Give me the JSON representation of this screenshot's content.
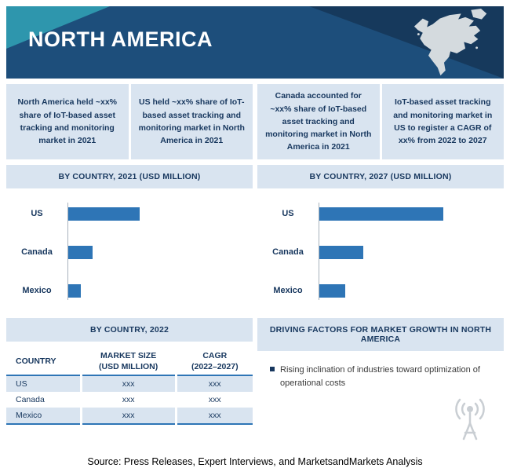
{
  "header": {
    "title": "NORTH AMERICA"
  },
  "highlights": [
    "North America held ~xx% share of IoT-based asset tracking and monitoring market in 2021",
    "US held ~xx% share of IoT-based asset tracking and monitoring market in North America in 2021",
    "Canada accounted for ~xx% share of IoT-based asset tracking and monitoring market in North America in 2021",
    "IoT-based asset tracking and monitoring market in US to register a CAGR of xx% from 2022 to 2027"
  ],
  "chart_data": [
    {
      "type": "bar",
      "orientation": "horizontal",
      "title": "BY COUNTRY, 2021 (USD MILLION)",
      "categories": [
        "US",
        "Canada",
        "Mexico"
      ],
      "values": [
        100,
        35,
        19
      ],
      "xmax": 240,
      "value_labels_shown": false,
      "note": "Numeric values masked in source (xx placeholders); values are relative bar lengths.",
      "bar_color": "#2e75b6",
      "legend": "none",
      "grid": false
    },
    {
      "type": "bar",
      "orientation": "horizontal",
      "title": "BY COUNTRY, 2027 (USD MILLION)",
      "categories": [
        "US",
        "Canada",
        "Mexico"
      ],
      "values": [
        173,
        62,
        37
      ],
      "xmax": 240,
      "value_labels_shown": false,
      "note": "Numeric values masked in source; values are relative bar lengths.",
      "bar_color": "#2e75b6",
      "legend": "none",
      "grid": false
    }
  ],
  "table": {
    "title": "BY COUNTRY, 2022",
    "columns": [
      {
        "line1": "COUNTRY",
        "line2": ""
      },
      {
        "line1": "MARKET SIZE",
        "line2": "(USD MILLION)"
      },
      {
        "line1": "CAGR",
        "line2": "(2022–2027)"
      }
    ],
    "rows": [
      {
        "country": "US",
        "market_size": "xxx",
        "cagr": "xxx"
      },
      {
        "country": "Canada",
        "market_size": "xxx",
        "cagr": "xxx"
      },
      {
        "country": "Mexico",
        "market_size": "xxx",
        "cagr": "xxx"
      }
    ]
  },
  "driving_factors": {
    "title": "DRIVING FACTORS FOR MARKET GROWTH IN NORTH AMERICA",
    "items": [
      "Rising inclination of industries toward optimization of operational costs"
    ]
  },
  "footer": {
    "source": "Source: Press Releases, Expert Interviews, and MarketsandMarkets Analysis"
  },
  "colors": {
    "header_bg": "#1d4e7b",
    "accent_teal": "#2e96ad",
    "panel_band_bg": "#d9e4f0",
    "bar": "#2e75b6",
    "text_dark_navy": "#17375e"
  },
  "icons": {
    "map": "north-america-map",
    "watermark": "broadcast-tower-icon"
  }
}
